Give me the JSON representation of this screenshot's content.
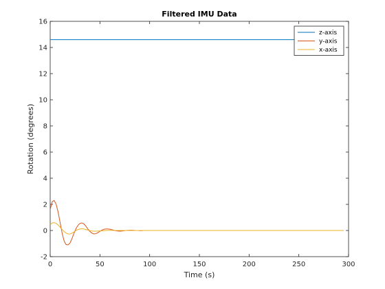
{
  "chart_data": {
    "type": "line",
    "title": "Filtered IMU Data",
    "xlabel": "Time (s)",
    "ylabel": "Rotation (degrees)",
    "xlim": [
      0,
      300
    ],
    "ylim": [
      -2,
      16
    ],
    "xticks": [
      0,
      50,
      100,
      150,
      200,
      250,
      300
    ],
    "yticks": [
      -2,
      0,
      2,
      4,
      6,
      8,
      10,
      12,
      14,
      16
    ],
    "grid": false,
    "legend_position": "top-right",
    "series": [
      {
        "name": "z-axis",
        "color": "#0072BD",
        "x": [
          0,
          295
        ],
        "y": [
          14.6,
          14.6
        ]
      },
      {
        "name": "y-axis",
        "color": "#D95319",
        "x": [
          0,
          2,
          4,
          6,
          8,
          10,
          12,
          14,
          16,
          18,
          20,
          22,
          24,
          26,
          28,
          30,
          32,
          34,
          36,
          38,
          40,
          42,
          44,
          46,
          48,
          50,
          52,
          54,
          56,
          58,
          60,
          62,
          64,
          66,
          68,
          70,
          72,
          74,
          76,
          78,
          80,
          82,
          84,
          86,
          88,
          90,
          92,
          94,
          96,
          98,
          100,
          104,
          108,
          110,
          120,
          140,
          160,
          180,
          200,
          220,
          240,
          260,
          280,
          295
        ],
        "y": [
          1.6,
          2.2,
          2.3,
          2.0,
          1.4,
          0.6,
          -0.2,
          -0.8,
          -1.08,
          -1.1,
          -0.95,
          -0.6,
          -0.2,
          0.15,
          0.4,
          0.55,
          0.58,
          0.5,
          0.32,
          0.1,
          -0.08,
          -0.2,
          -0.26,
          -0.24,
          -0.16,
          -0.06,
          0.03,
          0.09,
          0.12,
          0.12,
          0.1,
          0.06,
          0.02,
          -0.02,
          -0.04,
          -0.05,
          -0.04,
          -0.02,
          0.0,
          0.01,
          0.02,
          0.02,
          0.01,
          0.0,
          0.0,
          -0.01,
          -0.01,
          0.0,
          0.0,
          0.0,
          0.0,
          0.0,
          0.0,
          0.0,
          0.0,
          0.0,
          0.0,
          0.0,
          0.0,
          0.0,
          0.0,
          0.0,
          0.0,
          0.0
        ]
      },
      {
        "name": "x-axis",
        "color": "#EDB120",
        "x": [
          0,
          2,
          4,
          6,
          8,
          10,
          12,
          14,
          16,
          18,
          20,
          22,
          24,
          26,
          28,
          30,
          32,
          34,
          36,
          38,
          40,
          42,
          44,
          46,
          48,
          50,
          54,
          58,
          62,
          66,
          70,
          80,
          90,
          100,
          120,
          150,
          200,
          250,
          295
        ],
        "y": [
          0.45,
          0.58,
          0.6,
          0.55,
          0.42,
          0.25,
          0.08,
          -0.08,
          -0.2,
          -0.26,
          -0.26,
          -0.2,
          -0.1,
          0.0,
          0.08,
          0.12,
          0.13,
          0.11,
          0.07,
          0.03,
          -0.01,
          -0.04,
          -0.05,
          -0.05,
          -0.04,
          -0.03,
          -0.01,
          0.01,
          0.01,
          0.0,
          0.0,
          0.0,
          0.0,
          0.0,
          0.0,
          0.0,
          0.0,
          0.0,
          0.0
        ]
      }
    ]
  }
}
